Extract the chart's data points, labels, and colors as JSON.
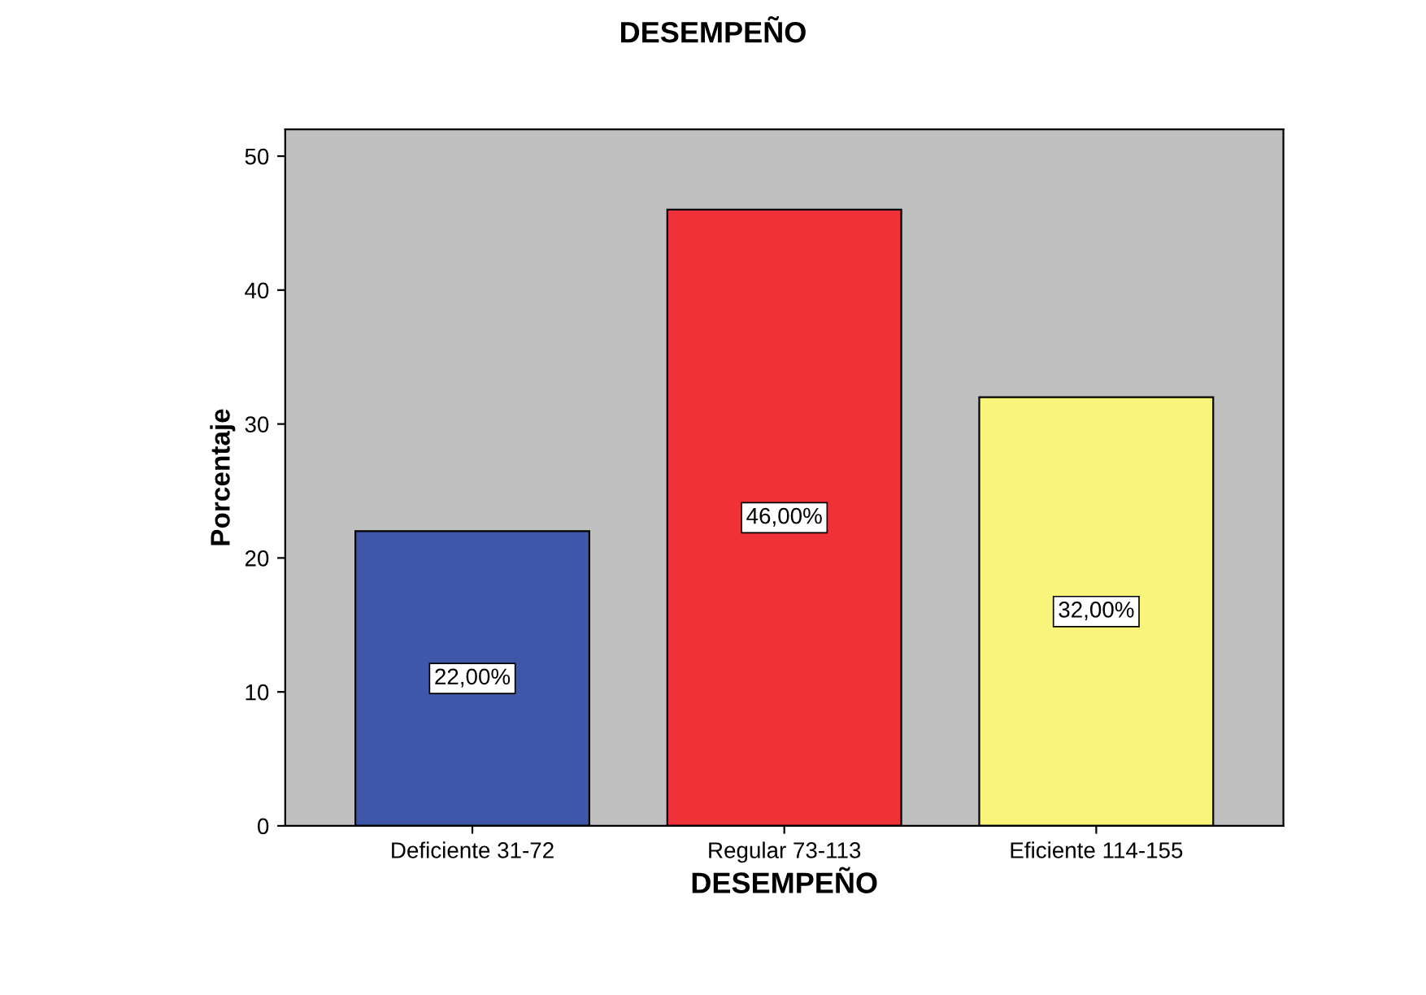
{
  "chart_data": {
    "type": "bar",
    "title": "DESEMPEÑO",
    "xlabel": "DESEMPEÑO",
    "ylabel": "Porcentaje",
    "categories": [
      "Deficiente 31-72",
      "Regular 73-113",
      "Eficiente 114-155"
    ],
    "values": [
      22,
      46,
      32
    ],
    "colors": [
      "#3f57a8",
      "#ee3237",
      "#f9f57a"
    ],
    "value_labels": [
      "22,00%",
      "46,00%",
      "32,00%"
    ],
    "ylim": [
      0,
      52
    ],
    "yticks": [
      0,
      10,
      20,
      30,
      40,
      50
    ],
    "grid": false,
    "legend": false
  }
}
